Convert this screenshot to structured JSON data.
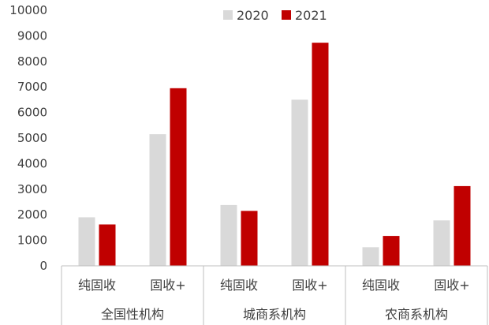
{
  "chart_data": {
    "type": "bar",
    "groups": [
      "全国性机构",
      "城商系机构",
      "农商系机构"
    ],
    "categories": [
      "纯固收",
      "固收+",
      "纯固收",
      "固收+",
      "纯固收",
      "固收+"
    ],
    "series": [
      {
        "name": "2020",
        "color": "#d9d9d9",
        "values": [
          1900,
          5150,
          2380,
          6500,
          730,
          1780
        ]
      },
      {
        "name": "2021",
        "color": "#c00000",
        "values": [
          1620,
          6950,
          2150,
          8730,
          1170,
          3120
        ]
      }
    ],
    "ylim": [
      0,
      10000
    ],
    "yticks": [
      0,
      1000,
      2000,
      3000,
      4000,
      5000,
      6000,
      7000,
      8000,
      9000,
      10000
    ],
    "grid": false,
    "legend_position": "top-center"
  }
}
